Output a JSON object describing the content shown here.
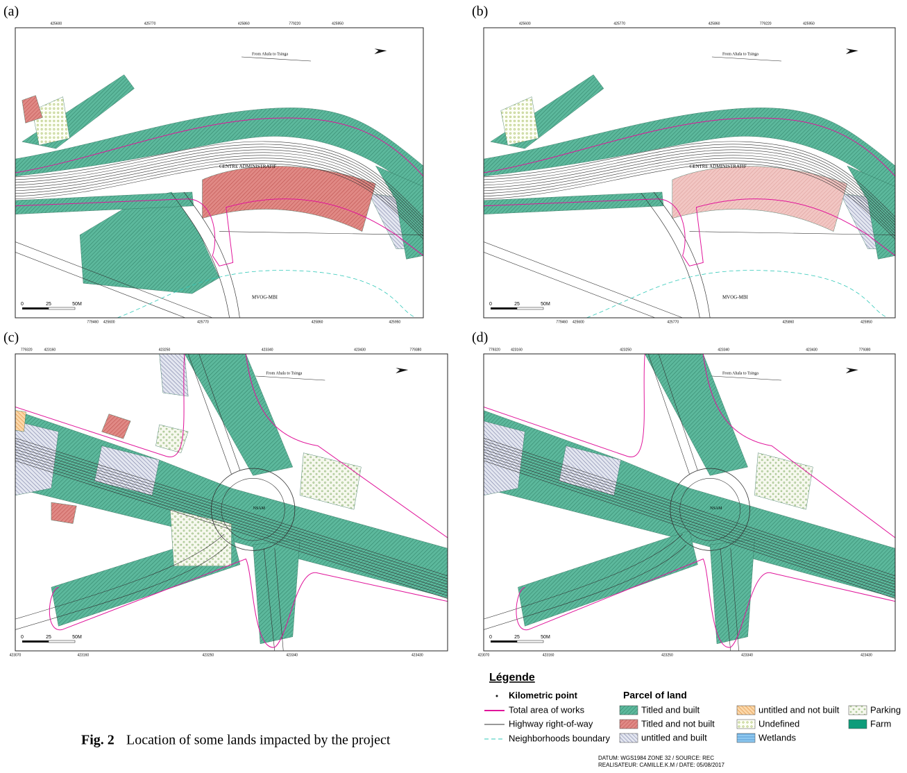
{
  "panels": [
    {
      "label": "(a)",
      "top_ticks": [
        "425600",
        "425770",
        "425860",
        "779220",
        "425950"
      ],
      "bottom_ticks": [
        "779460",
        "425600",
        "425770",
        "425860",
        "425950"
      ],
      "direction": "From Ahala to Tsinga",
      "place_1": "CENTRE ADMINISTRATIF",
      "place_2": "MVOG-MBI",
      "scale": [
        "0",
        "25",
        "50",
        "M"
      ]
    },
    {
      "label": "(b)",
      "top_ticks": [
        "425600",
        "425770",
        "425860",
        "779220",
        "425950"
      ],
      "bottom_ticks": [
        "779460",
        "425600",
        "425770",
        "425860",
        "425950"
      ],
      "direction": "From Ahala to Tsinga",
      "place_1": "CENTRE ADMINISTRATIF",
      "place_2": "MVOG-MBI",
      "scale": [
        "0",
        "25",
        "50",
        "M"
      ]
    },
    {
      "label": "(c)",
      "top_ticks": [
        "779320",
        "423160",
        "423250",
        "423340",
        "423430",
        "779380"
      ],
      "bottom_ticks": [
        "423070",
        "423160",
        "423250",
        "423340",
        "423430"
      ],
      "direction": "From Ahala to Tsinga",
      "place_1": "NSAM",
      "scale": [
        "0",
        "25",
        "50",
        "M"
      ]
    },
    {
      "label": "(d)",
      "top_ticks": [
        "779320",
        "423160",
        "423250",
        "423340",
        "423430",
        "779380"
      ],
      "bottom_ticks": [
        "423070",
        "423160",
        "423250",
        "423340",
        "423430"
      ],
      "direction": "From Ahala to Tsinga",
      "place_1": "NSAM",
      "scale": [
        "0",
        "25",
        "50",
        "M"
      ]
    }
  ],
  "legend": {
    "title": "Légende",
    "lines": [
      "Kilometric point",
      "Total area of works",
      "Highway right-of-way",
      "Neighborhoods boundary"
    ],
    "parcel_title": "Parcel of land",
    "parcels": [
      "Titled and built",
      "Titled and not built",
      "untitled and built",
      "untitled and not built",
      "Undefined",
      "Wetlands",
      "Parking",
      "Farm"
    ]
  },
  "caption": {
    "label": "Fig. 2",
    "text": "Location of some lands impacted by the project"
  },
  "credits": [
    "DATUM: WGS1984 ZONE 32 / SOURCE: REC",
    "REALISATEUR: CAMILLE.K.M / DATE: 05/08/2017"
  ]
}
